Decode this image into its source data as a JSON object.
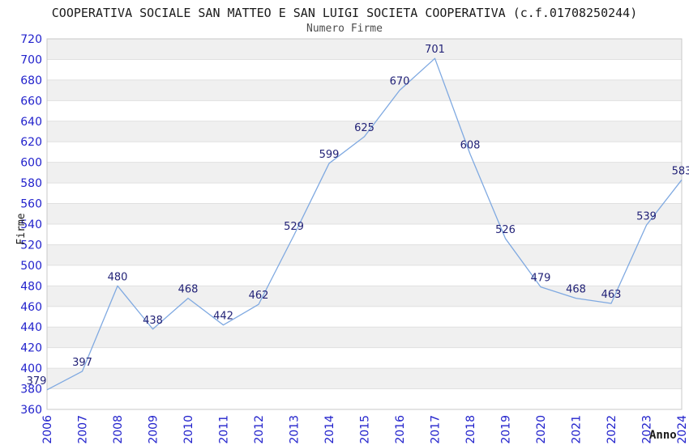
{
  "chart_data": {
    "type": "line",
    "title": "COOPERATIVA SOCIALE SAN MATTEO E SAN LUIGI SOCIETA COOPERATIVA (c.f.01708250244)",
    "subtitle": "Numero Firme",
    "xlabel": "Anno",
    "ylabel": "Firme",
    "categories": [
      "2006",
      "2007",
      "2008",
      "2009",
      "2010",
      "2011",
      "2012",
      "2013",
      "2014",
      "2015",
      "2016",
      "2017",
      "2018",
      "2019",
      "2020",
      "2021",
      "2022",
      "2023",
      "2024"
    ],
    "values": [
      379,
      397,
      480,
      438,
      468,
      442,
      462,
      529,
      599,
      625,
      670,
      701,
      608,
      526,
      479,
      468,
      463,
      539,
      583
    ],
    "ylim": [
      360,
      720
    ],
    "ytick_step": 20,
    "grid": "horizontal-bands",
    "legend_position": "none",
    "point_labels_visible": true,
    "colors": {
      "line": "#7fa9e1",
      "tick_labels": "#2222cc",
      "point_labels": "#222277",
      "band": "#f0f0f0",
      "gridline": "#e0e0e0",
      "plot_border": "#c8c8c8",
      "title": "#1a1a1a",
      "subtitle": "#4d4d4d",
      "axis_titles": "#1a1a1a"
    }
  }
}
